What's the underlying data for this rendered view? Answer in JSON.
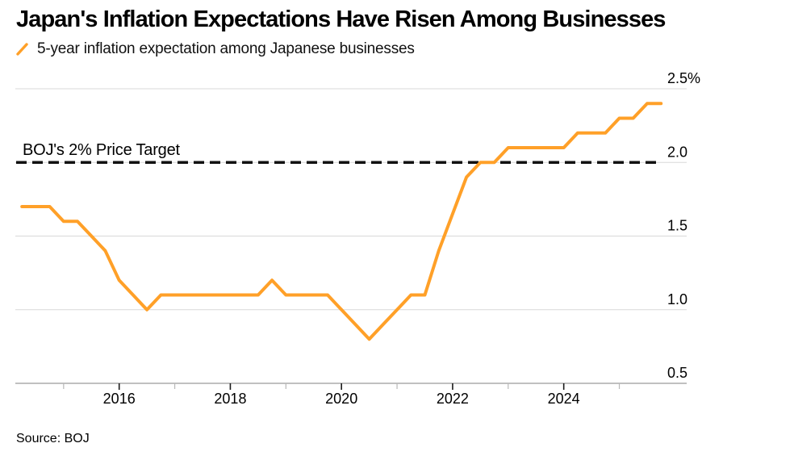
{
  "header": {
    "title": "Japan's Inflation Expectations Have Risen Among Businesses",
    "legend": {
      "series_label": "5-year inflation expectation among Japanese businesses"
    }
  },
  "annotation": {
    "target_label": "BOJ's 2% Price Target"
  },
  "footer": {
    "source": "Source: BOJ"
  },
  "colors": {
    "line": "#FFA028",
    "grid": "#D8D8D8",
    "axis_line": "#9B9B9B",
    "target_line": "#111111",
    "major_tick": "#1A1A1A",
    "minor_tick": "#B8B8B8",
    "text": "#000000"
  },
  "chart_data": {
    "type": "line",
    "title": "Japan's Inflation Expectations Have Risen Among Businesses",
    "xlabel": "",
    "ylabel": "%",
    "ylim": [
      0.5,
      2.5
    ],
    "xlim": [
      2014.1,
      2026.2
    ],
    "grid": "horizontal-only",
    "legend_position": "top-left",
    "y_ticks": {
      "side": "right",
      "values": [
        0.5,
        1.0,
        1.5,
        2.0,
        2.5
      ],
      "labels": [
        "0.5",
        "1.0",
        "1.5",
        "2.0",
        "2.5%"
      ]
    },
    "x_ticks": {
      "labeled_years": [
        2016,
        2018,
        2020,
        2022,
        2024
      ],
      "unlabeled_years": [
        2015,
        2017,
        2019,
        2021,
        2023,
        2025
      ]
    },
    "target_line": {
      "label": "BOJ's 2% Price Target",
      "value": 2.0,
      "style": "dashed"
    },
    "series": [
      {
        "name": "5-year inflation expectation among Japanese businesses",
        "color": "#FFA028",
        "periods": [
          "2014 Q1",
          "2014 Q2",
          "2014 Q3",
          "2014 Q4",
          "2015 Q1",
          "2015 Q2",
          "2015 Q3",
          "2015 Q4",
          "2016 Q1",
          "2016 Q2",
          "2016 Q3",
          "2016 Q4",
          "2017 Q1",
          "2017 Q2",
          "2017 Q3",
          "2017 Q4",
          "2018 Q1",
          "2018 Q2",
          "2018 Q3",
          "2018 Q4",
          "2019 Q1",
          "2019 Q2",
          "2019 Q3",
          "2019 Q4",
          "2020 Q1",
          "2020 Q2",
          "2020 Q3",
          "2020 Q4",
          "2021 Q1",
          "2021 Q2",
          "2021 Q3",
          "2021 Q4",
          "2022 Q1",
          "2022 Q2",
          "2022 Q3",
          "2022 Q4",
          "2023 Q1",
          "2023 Q2",
          "2023 Q3",
          "2023 Q4",
          "2024 Q1",
          "2024 Q2",
          "2024 Q3",
          "2024 Q4",
          "2025 Q1",
          "2025 Q2",
          "2025 Q3"
        ],
        "values": [
          1.7,
          1.7,
          1.7,
          1.6,
          1.6,
          1.5,
          1.4,
          1.2,
          1.1,
          1.0,
          1.1,
          1.1,
          1.1,
          1.1,
          1.1,
          1.1,
          1.1,
          1.1,
          1.2,
          1.1,
          1.1,
          1.1,
          1.1,
          1.0,
          0.9,
          0.8,
          0.9,
          1.0,
          1.1,
          1.1,
          1.4,
          1.65,
          1.9,
          2.0,
          2.0,
          2.1,
          2.1,
          2.1,
          2.1,
          2.1,
          2.2,
          2.2,
          2.2,
          2.3,
          2.3,
          2.4,
          2.4
        ]
      }
    ]
  }
}
